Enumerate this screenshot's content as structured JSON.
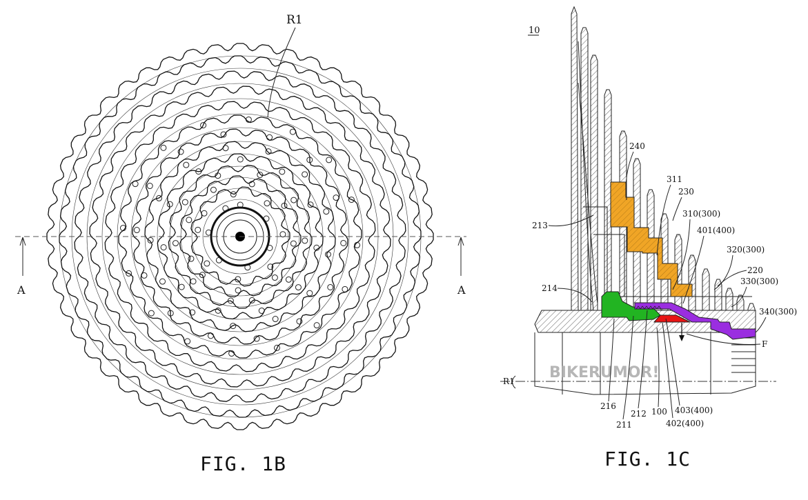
{
  "fig_1b": {
    "caption": "FIG. 1B",
    "axis_label": "R1",
    "section_label_left": "A",
    "section_label_right": "A"
  },
  "fig_1c": {
    "caption": "FIG. 1C",
    "ref_main": "10",
    "axis_label": "R1",
    "force_label": "F",
    "labels": {
      "l240": "240",
      "l311": "311",
      "l230": "230",
      "l310": "310(300)",
      "l401": "401(400)",
      "l320": "320(300)",
      "l220": "220",
      "l330": "330(300)",
      "l340": "340(300)",
      "l213": "213",
      "l214": "214",
      "l216": "216",
      "l211": "211",
      "l212": "212",
      "l100": "100",
      "l403": "403(400)",
      "l402": "402(400)"
    },
    "watermark": "BIKERUMOR!"
  },
  "colors": {
    "orange_part": "#F0A526",
    "green_part": "#22B422",
    "purple_part": "#9A2EE0",
    "red_part": "#E81414"
  }
}
